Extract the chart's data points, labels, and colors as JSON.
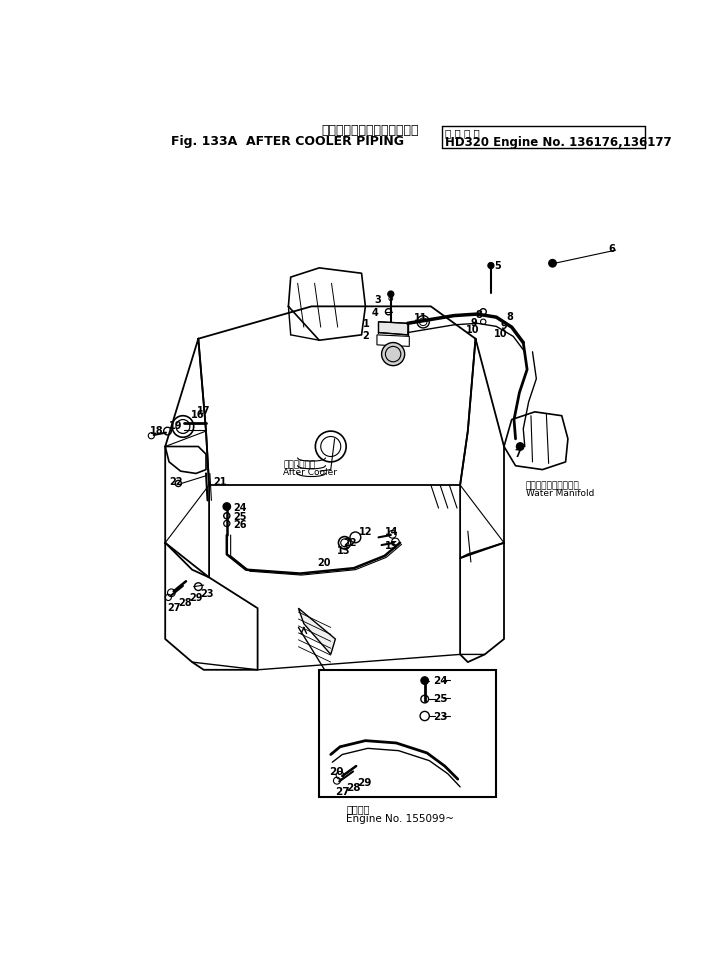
{
  "title_jp": "アフタ　クーラ　パイピング",
  "title_en": "Fig. 133A  AFTER COOLER PIPING",
  "title_machine_jp": "適 用 号 機",
  "title_model": "HD320 Engine No. 136176,136177",
  "footer_jp": "適用号機",
  "footer_en": "Engine No. 155099~",
  "label_after_cooler_jp": "アフタクーラ",
  "label_after_cooler_en": "After Cooler",
  "label_water_manifold_jp": "ウォータマニホールド",
  "label_water_manifold_en": "Water Manifold",
  "bg_color": "#ffffff",
  "lc": "#000000"
}
